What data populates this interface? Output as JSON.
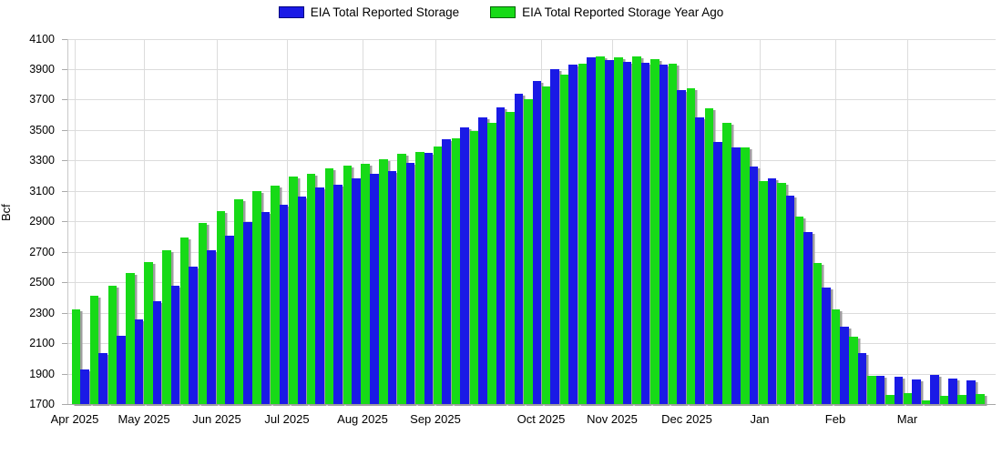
{
  "legend": {
    "current_label": "EIA Total Reported Storage",
    "year_ago_label": "EIA Total Reported Storage Year Ago"
  },
  "colors": {
    "current": "#1a1ae6",
    "year_ago": "#17da17",
    "bar_shadow": "#9e9e9e",
    "gridline": "#dcdcdc",
    "axis": "#b0b0b0",
    "text": "#000000",
    "background": "#ffffff"
  },
  "y_axis": {
    "label": "Bcf",
    "min": 1700,
    "max": 4100,
    "step": 200,
    "ticks": [
      4100,
      3900,
      3700,
      3500,
      3300,
      3100,
      2900,
      2700,
      2500,
      2300,
      2100,
      1900,
      1700
    ]
  },
  "x_axis": {
    "month_labels": [
      "Apr 2025",
      "May 2025",
      "Jun 2025",
      "Jul 2025",
      "Aug 2025",
      "Sep 2025",
      "Oct 2025",
      "Nov 2025",
      "Dec 2025",
      "Jan",
      "Feb",
      "Mar"
    ]
  },
  "chart_data": {
    "type": "bar",
    "title": "",
    "ylabel": "Bcf",
    "ylim": [
      1700,
      4100
    ],
    "grid": true,
    "legend_position": "top-center",
    "categories": [
      "Apr 2025",
      "May 2025",
      "Jun 2025",
      "Jul 2025",
      "Aug 2025",
      "Sep 2025",
      "Oct 2025",
      "Nov 2025",
      "Dec 2025",
      "Jan",
      "Feb",
      "Mar"
    ],
    "weeks_per_month": [
      3,
      5,
      4,
      4,
      5,
      4,
      5,
      4,
      4,
      5,
      4,
      4
    ],
    "series": [
      {
        "name": "EIA Total Reported Storage",
        "color": "#1a1ae6",
        "values": [
          null,
          1930,
          2035,
          2150,
          2255,
          2375,
          2480,
          2600,
          2710,
          2805,
          2895,
          2960,
          3010,
          3060,
          3125,
          3140,
          3185,
          3215,
          3230,
          3285,
          3350,
          3440,
          3520,
          3580,
          3650,
          3740,
          3820,
          3900,
          3930,
          3975,
          3960,
          3950,
          3940,
          3930,
          3760,
          3585,
          3420,
          3385,
          3260,
          3180,
          3070,
          2830,
          2465,
          2210,
          2035,
          1885,
          1880,
          1860,
          1890,
          1870,
          1858
        ]
      },
      {
        "name": "EIA Total Reported Storage Year Ago",
        "color": "#17da17",
        "values": [
          2320,
          2410,
          2475,
          2560,
          2630,
          2710,
          2795,
          2890,
          2970,
          3045,
          3100,
          3135,
          3195,
          3215,
          3250,
          3265,
          3280,
          3310,
          3345,
          3355,
          3390,
          3448,
          3495,
          3550,
          3620,
          3705,
          3785,
          3865,
          3935,
          3985,
          3975,
          3985,
          3965,
          3935,
          3775,
          3645,
          3545,
          3385,
          3165,
          3150,
          2930,
          2625,
          2320,
          2140,
          1885,
          1760,
          1772,
          1723,
          1752,
          1758,
          1765
        ]
      }
    ]
  }
}
